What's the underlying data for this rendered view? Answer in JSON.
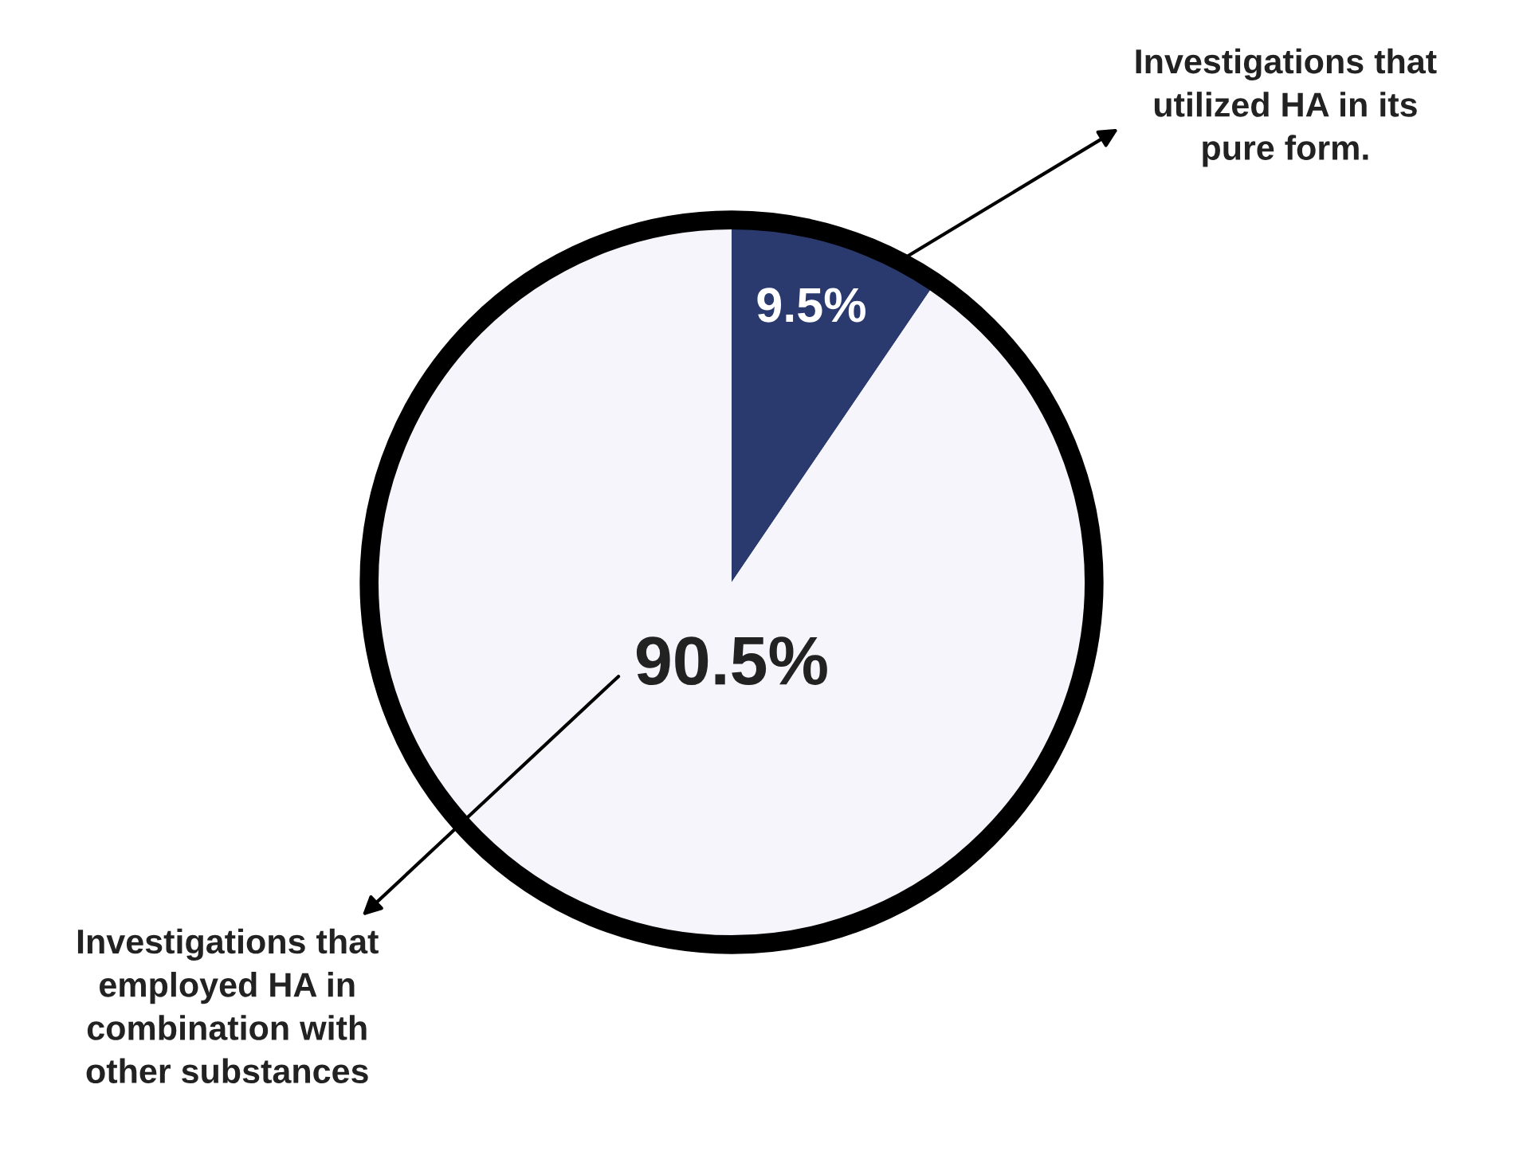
{
  "chart_data": {
    "type": "pie",
    "categories": [
      "Investigations that utilized HA in its pure form.",
      "Investigations that employed HA in combination with other substances"
    ],
    "values": [
      9.5,
      90.5
    ],
    "colors": [
      "#2b3a6e",
      "#f5f5fb"
    ],
    "value_labels": [
      "9.5%",
      "90.5%"
    ]
  }
}
